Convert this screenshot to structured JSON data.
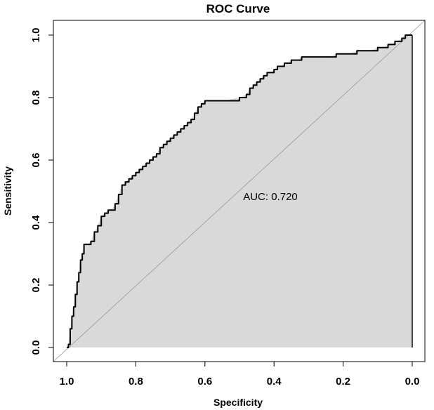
{
  "chart_data": {
    "type": "line",
    "title": "ROC Curve",
    "xlabel": "Specificity",
    "ylabel": "Sensitivity",
    "x_reversed": true,
    "xlim": [
      1.0,
      0.0
    ],
    "ylim": [
      0.0,
      1.0
    ],
    "x_ticks": [
      "1.0",
      "0.8",
      "0.6",
      "0.4",
      "0.2",
      "0.0"
    ],
    "y_ticks": [
      "0.0",
      "0.2",
      "0.4",
      "0.6",
      "0.8",
      "1.0"
    ],
    "x_tick_values": [
      1.0,
      0.8,
      0.6,
      0.4,
      0.2,
      0.0
    ],
    "y_tick_values": [
      0.0,
      0.2,
      0.4,
      0.6,
      0.8,
      1.0
    ],
    "annotation": "AUC: 0.720",
    "auc": 0.72,
    "grid": false,
    "fill_color": "#d9d9d9",
    "line_color": "#000000",
    "diagonal_color": "#999999",
    "series": [
      {
        "specificity": [
          1.0,
          0.995,
          0.99,
          0.985,
          0.98,
          0.975,
          0.97,
          0.965,
          0.96,
          0.955,
          0.95,
          0.945,
          0.94,
          0.93,
          0.92,
          0.91,
          0.9,
          0.89,
          0.88,
          0.87,
          0.86,
          0.85,
          0.84,
          0.83,
          0.82,
          0.81,
          0.8,
          0.79,
          0.78,
          0.77,
          0.76,
          0.75,
          0.74,
          0.73,
          0.72,
          0.71,
          0.7,
          0.69,
          0.68,
          0.67,
          0.66,
          0.65,
          0.64,
          0.63,
          0.62,
          0.61,
          0.6,
          0.59,
          0.58,
          0.57,
          0.56,
          0.55,
          0.5,
          0.48,
          0.47,
          0.46,
          0.45,
          0.44,
          0.43,
          0.42,
          0.41,
          0.4,
          0.39,
          0.38,
          0.37,
          0.36,
          0.35,
          0.34,
          0.33,
          0.32,
          0.31,
          0.3,
          0.28,
          0.26,
          0.24,
          0.22,
          0.2,
          0.18,
          0.16,
          0.14,
          0.12,
          0.1,
          0.08,
          0.07,
          0.06,
          0.05,
          0.04,
          0.03,
          0.02,
          0.0
        ],
        "sensitivity": [
          0.0,
          0.01,
          0.06,
          0.1,
          0.13,
          0.17,
          0.21,
          0.24,
          0.28,
          0.3,
          0.33,
          0.33,
          0.33,
          0.34,
          0.37,
          0.39,
          0.42,
          0.43,
          0.44,
          0.44,
          0.46,
          0.49,
          0.52,
          0.53,
          0.54,
          0.55,
          0.56,
          0.57,
          0.58,
          0.59,
          0.6,
          0.61,
          0.62,
          0.64,
          0.65,
          0.66,
          0.67,
          0.68,
          0.69,
          0.7,
          0.71,
          0.72,
          0.73,
          0.75,
          0.77,
          0.78,
          0.79,
          0.79,
          0.79,
          0.79,
          0.79,
          0.79,
          0.8,
          0.81,
          0.83,
          0.84,
          0.85,
          0.86,
          0.87,
          0.88,
          0.88,
          0.89,
          0.9,
          0.9,
          0.91,
          0.91,
          0.92,
          0.92,
          0.92,
          0.93,
          0.93,
          0.93,
          0.93,
          0.93,
          0.93,
          0.94,
          0.94,
          0.94,
          0.95,
          0.95,
          0.95,
          0.96,
          0.96,
          0.97,
          0.97,
          0.98,
          0.98,
          0.99,
          1.0,
          1.0
        ]
      }
    ]
  }
}
